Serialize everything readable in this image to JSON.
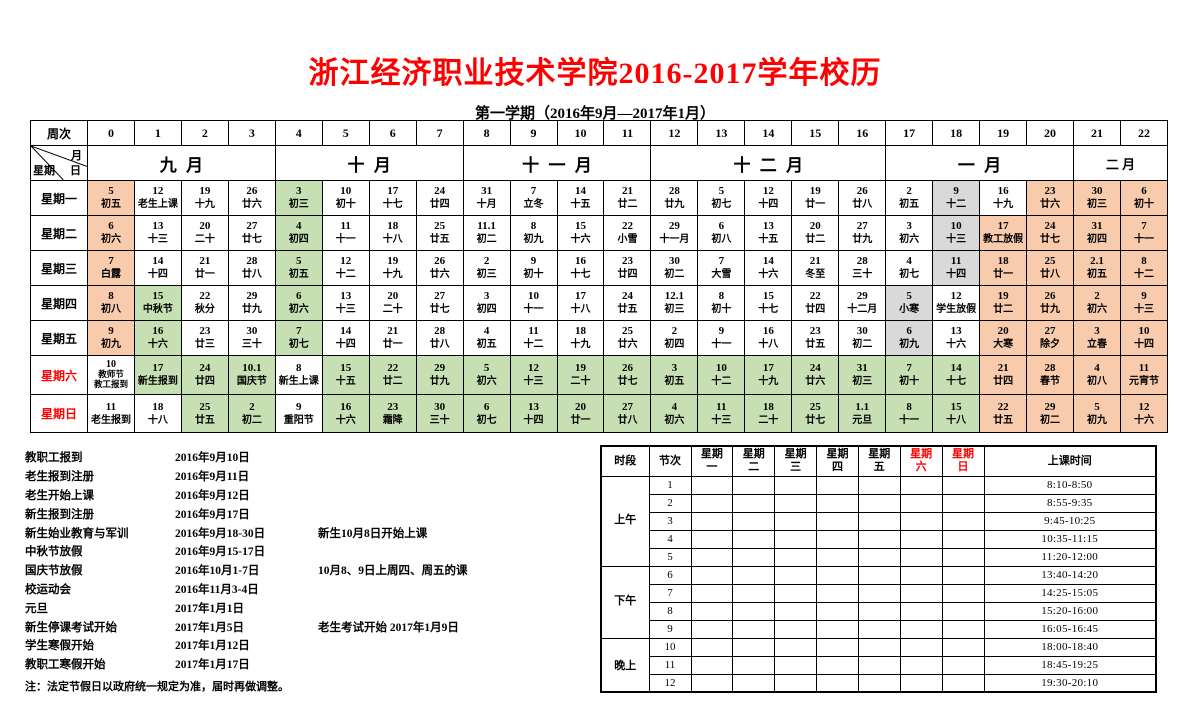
{
  "page": {
    "title": "浙江经济职业技术学院2016-2017学年校历",
    "subtitle": "第一学期（2016年9月—2017年1月）"
  },
  "colors": {
    "o": "#F8CBAD",
    "g": "#C6E0B4",
    "y": "#D9D9D9",
    "w": "#FFFFFF",
    "accent_red": "#FF0000"
  },
  "calendar": {
    "week_header": "周次",
    "week_numbers": [
      "0",
      "1",
      "2",
      "3",
      "4",
      "5",
      "6",
      "7",
      "8",
      "9",
      "10",
      "11",
      "12",
      "13",
      "14",
      "15",
      "16",
      "17",
      "18",
      "19",
      "20",
      "21",
      "22"
    ],
    "corner": {
      "month": "月",
      "weekday": "星期",
      "day": "日"
    },
    "months": [
      {
        "label": "九月",
        "span": 4
      },
      {
        "label": "十月",
        "span": 4
      },
      {
        "label": "十一月",
        "span": 4
      },
      {
        "label": "十二月",
        "span": 5
      },
      {
        "label": "一月",
        "span": 4
      },
      {
        "label": "二月",
        "span": 2
      }
    ],
    "rows": [
      {
        "label": "星期一",
        "red": false,
        "cells": [
          [
            "5",
            "初五",
            "o"
          ],
          [
            "12",
            "老生上课",
            "w"
          ],
          [
            "19",
            "十九",
            "w"
          ],
          [
            "26",
            "廿六",
            "w"
          ],
          [
            "3",
            "初三",
            "g"
          ],
          [
            "10",
            "初十",
            "w"
          ],
          [
            "17",
            "十七",
            "w"
          ],
          [
            "24",
            "廿四",
            "w"
          ],
          [
            "31",
            "十月",
            "w"
          ],
          [
            "7",
            "立冬",
            "w"
          ],
          [
            "14",
            "十五",
            "w"
          ],
          [
            "21",
            "廿二",
            "w"
          ],
          [
            "28",
            "廿九",
            "w"
          ],
          [
            "5",
            "初七",
            "w"
          ],
          [
            "12",
            "十四",
            "w"
          ],
          [
            "19",
            "廿一",
            "w"
          ],
          [
            "26",
            "廿八",
            "w"
          ],
          [
            "2",
            "初五",
            "w"
          ],
          [
            "9",
            "十二",
            "y"
          ],
          [
            "16",
            "十九",
            "w"
          ],
          [
            "23",
            "廿六",
            "o"
          ],
          [
            "30",
            "初三",
            "o"
          ],
          [
            "6",
            "初十",
            "o"
          ]
        ]
      },
      {
        "label": "星期二",
        "red": false,
        "cells": [
          [
            "6",
            "初六",
            "o"
          ],
          [
            "13",
            "十三",
            "w"
          ],
          [
            "20",
            "二十",
            "w"
          ],
          [
            "27",
            "廿七",
            "w"
          ],
          [
            "4",
            "初四",
            "g"
          ],
          [
            "11",
            "十一",
            "w"
          ],
          [
            "18",
            "十八",
            "w"
          ],
          [
            "25",
            "廿五",
            "w"
          ],
          [
            "11.1",
            "初二",
            "w"
          ],
          [
            "8",
            "初九",
            "w"
          ],
          [
            "15",
            "十六",
            "w"
          ],
          [
            "22",
            "小雪",
            "w"
          ],
          [
            "29",
            "十一月",
            "w"
          ],
          [
            "6",
            "初八",
            "w"
          ],
          [
            "13",
            "十五",
            "w"
          ],
          [
            "20",
            "廿二",
            "w"
          ],
          [
            "27",
            "廿九",
            "w"
          ],
          [
            "3",
            "初六",
            "w"
          ],
          [
            "10",
            "十三",
            "y"
          ],
          [
            "17",
            "教工放假",
            "o"
          ],
          [
            "24",
            "廿七",
            "o"
          ],
          [
            "31",
            "初四",
            "o"
          ],
          [
            "7",
            "十一",
            "o"
          ]
        ]
      },
      {
        "label": "星期三",
        "red": false,
        "cells": [
          [
            "7",
            "白露",
            "o"
          ],
          [
            "14",
            "十四",
            "w"
          ],
          [
            "21",
            "廿一",
            "w"
          ],
          [
            "28",
            "廿八",
            "w"
          ],
          [
            "5",
            "初五",
            "g"
          ],
          [
            "12",
            "十二",
            "w"
          ],
          [
            "19",
            "十九",
            "w"
          ],
          [
            "26",
            "廿六",
            "w"
          ],
          [
            "2",
            "初三",
            "w"
          ],
          [
            "9",
            "初十",
            "w"
          ],
          [
            "16",
            "十七",
            "w"
          ],
          [
            "23",
            "廿四",
            "w"
          ],
          [
            "30",
            "初二",
            "w"
          ],
          [
            "7",
            "大雪",
            "w"
          ],
          [
            "14",
            "十六",
            "w"
          ],
          [
            "21",
            "冬至",
            "w"
          ],
          [
            "28",
            "三十",
            "w"
          ],
          [
            "4",
            "初七",
            "w"
          ],
          [
            "11",
            "十四",
            "y"
          ],
          [
            "18",
            "廿一",
            "o"
          ],
          [
            "25",
            "廿八",
            "o"
          ],
          [
            "2.1",
            "初五",
            "o"
          ],
          [
            "8",
            "十二",
            "o"
          ]
        ]
      },
      {
        "label": "星期四",
        "red": false,
        "cells": [
          [
            "8",
            "初八",
            "o"
          ],
          [
            "15",
            "中秋节",
            "g"
          ],
          [
            "22",
            "秋分",
            "w"
          ],
          [
            "29",
            "廿九",
            "w"
          ],
          [
            "6",
            "初六",
            "g"
          ],
          [
            "13",
            "十三",
            "w"
          ],
          [
            "20",
            "二十",
            "w"
          ],
          [
            "27",
            "廿七",
            "w"
          ],
          [
            "3",
            "初四",
            "w"
          ],
          [
            "10",
            "十一",
            "w"
          ],
          [
            "17",
            "十八",
            "w"
          ],
          [
            "24",
            "廿五",
            "w"
          ],
          [
            "12.1",
            "初三",
            "w"
          ],
          [
            "8",
            "初十",
            "w"
          ],
          [
            "15",
            "十七",
            "w"
          ],
          [
            "22",
            "廿四",
            "w"
          ],
          [
            "29",
            "十二月",
            "w"
          ],
          [
            "5",
            "小寒",
            "y"
          ],
          [
            "12",
            "学生放假",
            "w"
          ],
          [
            "19",
            "廿二",
            "o"
          ],
          [
            "26",
            "廿九",
            "o"
          ],
          [
            "2",
            "初六",
            "o"
          ],
          [
            "9",
            "十三",
            "o"
          ]
        ]
      },
      {
        "label": "星期五",
        "red": false,
        "cells": [
          [
            "9",
            "初九",
            "o"
          ],
          [
            "16",
            "十六",
            "g"
          ],
          [
            "23",
            "廿三",
            "w"
          ],
          [
            "30",
            "三十",
            "w"
          ],
          [
            "7",
            "初七",
            "g"
          ],
          [
            "14",
            "十四",
            "w"
          ],
          [
            "21",
            "廿一",
            "w"
          ],
          [
            "28",
            "廿八",
            "w"
          ],
          [
            "4",
            "初五",
            "w"
          ],
          [
            "11",
            "十二",
            "w"
          ],
          [
            "18",
            "十九",
            "w"
          ],
          [
            "25",
            "廿六",
            "w"
          ],
          [
            "2",
            "初四",
            "w"
          ],
          [
            "9",
            "十一",
            "w"
          ],
          [
            "16",
            "十八",
            "w"
          ],
          [
            "23",
            "廿五",
            "w"
          ],
          [
            "30",
            "初二",
            "w"
          ],
          [
            "6",
            "初九",
            "y"
          ],
          [
            "13",
            "十六",
            "w"
          ],
          [
            "20",
            "大寒",
            "o"
          ],
          [
            "27",
            "除夕",
            "o"
          ],
          [
            "3",
            "立春",
            "o"
          ],
          [
            "10",
            "十四",
            "o"
          ]
        ]
      },
      {
        "label": "星期六",
        "red": true,
        "cells": [
          [
            "10",
            "教师节",
            "教工报到",
            "w"
          ],
          [
            "17",
            "新生报到",
            "g"
          ],
          [
            "24",
            "廿四",
            "g"
          ],
          [
            "10.1",
            "国庆节",
            "g"
          ],
          [
            "8",
            "新生上课",
            "w"
          ],
          [
            "15",
            "十五",
            "g"
          ],
          [
            "22",
            "廿二",
            "g"
          ],
          [
            "29",
            "廿九",
            "g"
          ],
          [
            "5",
            "初六",
            "g"
          ],
          [
            "12",
            "十三",
            "g"
          ],
          [
            "19",
            "二十",
            "g"
          ],
          [
            "26",
            "廿七",
            "g"
          ],
          [
            "3",
            "初五",
            "g"
          ],
          [
            "10",
            "十二",
            "g"
          ],
          [
            "17",
            "十九",
            "g"
          ],
          [
            "24",
            "廿六",
            "g"
          ],
          [
            "31",
            "初三",
            "g"
          ],
          [
            "7",
            "初十",
            "g"
          ],
          [
            "14",
            "十七",
            "g"
          ],
          [
            "21",
            "廿四",
            "o"
          ],
          [
            "28",
            "春节",
            "o"
          ],
          [
            "4",
            "初八",
            "o"
          ],
          [
            "11",
            "元宵节",
            "o"
          ]
        ]
      },
      {
        "label": "星期日",
        "red": true,
        "cells": [
          [
            "11",
            "老生报到",
            "w"
          ],
          [
            "18",
            "十八",
            "w"
          ],
          [
            "25",
            "廿五",
            "g"
          ],
          [
            "2",
            "初二",
            "g"
          ],
          [
            "9",
            "重阳节",
            "w"
          ],
          [
            "16",
            "十六",
            "g"
          ],
          [
            "23",
            "霜降",
            "g"
          ],
          [
            "30",
            "三十",
            "g"
          ],
          [
            "6",
            "初七",
            "g"
          ],
          [
            "13",
            "十四",
            "g"
          ],
          [
            "20",
            "廿一",
            "g"
          ],
          [
            "27",
            "廿八",
            "g"
          ],
          [
            "4",
            "初六",
            "g"
          ],
          [
            "11",
            "十三",
            "g"
          ],
          [
            "18",
            "二十",
            "g"
          ],
          [
            "25",
            "廿七",
            "g"
          ],
          [
            "1.1",
            "元旦",
            "g"
          ],
          [
            "8",
            "十一",
            "g"
          ],
          [
            "15",
            "十八",
            "g"
          ],
          [
            "22",
            "廿五",
            "o"
          ],
          [
            "29",
            "初二",
            "o"
          ],
          [
            "5",
            "初九",
            "o"
          ],
          [
            "12",
            "十六",
            "o"
          ]
        ]
      }
    ]
  },
  "events": {
    "items": [
      {
        "name": "教职工报到",
        "date": "2016年9月10日",
        "note": ""
      },
      {
        "name": "老生报到注册",
        "date": "2016年9月11日",
        "note": ""
      },
      {
        "name": "老生开始上课",
        "date": "2016年9月12日",
        "note": ""
      },
      {
        "name": "新生报到注册",
        "date": "2016年9月17日",
        "note": ""
      },
      {
        "name": "新生始业教育与军训",
        "date": "2016年9月18-30日",
        "note": "新生10月8日开始上课"
      },
      {
        "name": "中秋节放假",
        "date": "2016年9月15-17日",
        "note": ""
      },
      {
        "name": "国庆节放假",
        "date": "2016年10月1-7日",
        "note": "10月8、9日上周四、周五的课"
      },
      {
        "name": "校运动会",
        "date": "2016年11月3-4日",
        "note": ""
      },
      {
        "name": "元旦",
        "date": "2017年1月1日",
        "note": ""
      },
      {
        "name": "新生停课考试开始",
        "date": "2017年1月5日",
        "note": "老生考试开始 2017年1月9日"
      },
      {
        "name": "学生寒假开始",
        "date": "2017年1月12日",
        "note": ""
      },
      {
        "name": "教职工寒假开始",
        "date": "2017年1月17日",
        "note": ""
      }
    ],
    "footnote": "注：法定节假日以政府统一规定为准，届时再做调整。"
  },
  "schedule": {
    "col_headers": [
      "时段",
      "节次",
      "星期一",
      "星期二",
      "星期三",
      "星期四",
      "星期五",
      "星期六",
      "星期日",
      "上课时间"
    ],
    "red_headers": [
      "星期六",
      "星期日"
    ],
    "sections": [
      {
        "label": "上午",
        "periods": [
          {
            "no": "1",
            "time": "8:10-8:50"
          },
          {
            "no": "2",
            "time": "8:55-9:35"
          },
          {
            "no": "3",
            "time": "9:45-10:25"
          },
          {
            "no": "4",
            "time": "10:35-11:15"
          },
          {
            "no": "5",
            "time": "11:20-12:00"
          }
        ]
      },
      {
        "label": "下午",
        "periods": [
          {
            "no": "6",
            "time": "13:40-14:20"
          },
          {
            "no": "7",
            "time": "14:25-15:05"
          },
          {
            "no": "8",
            "time": "15:20-16:00"
          },
          {
            "no": "9",
            "time": "16:05-16:45"
          }
        ]
      },
      {
        "label": "晚上",
        "periods": [
          {
            "no": "10",
            "time": "18:00-18:40"
          },
          {
            "no": "11",
            "time": "18:45-19:25"
          },
          {
            "no": "12",
            "time": "19:30-20:10"
          }
        ]
      }
    ]
  }
}
